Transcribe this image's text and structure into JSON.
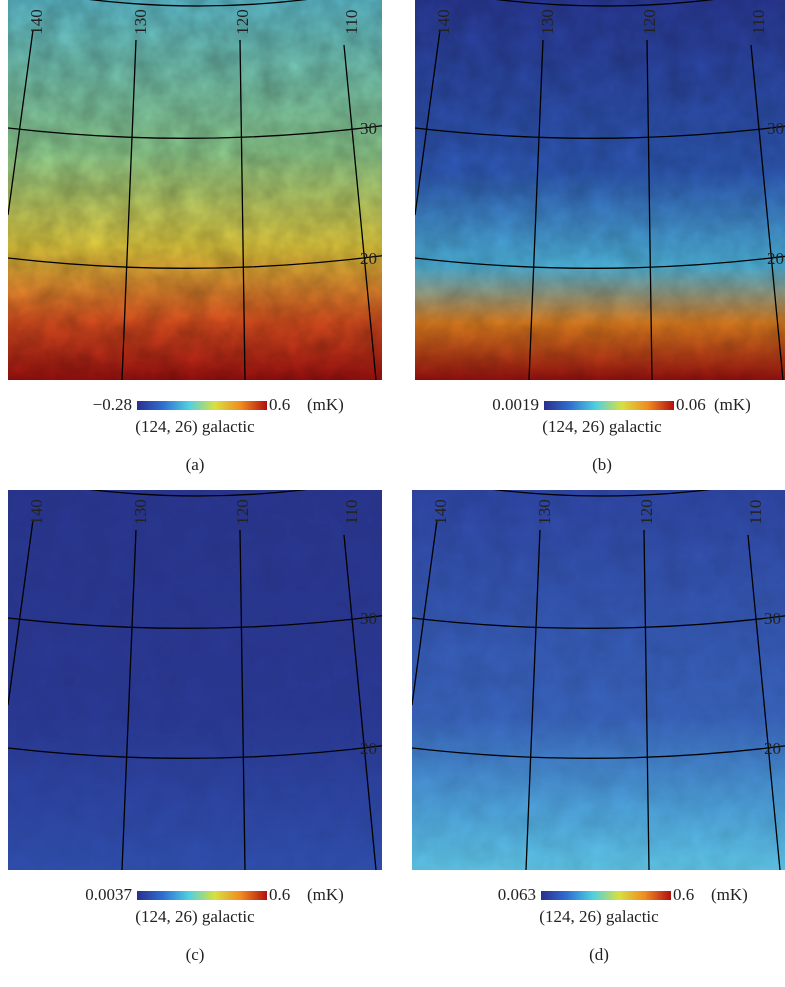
{
  "graticule": {
    "longitudes": [
      "140",
      "130",
      "120",
      "110"
    ],
    "latitudes": [
      "30",
      "20"
    ]
  },
  "panels": [
    {
      "caption": "(a)",
      "min": "−0.28",
      "max": "0.6",
      "unit": "(mK)",
      "center": "(124, 26) galactic"
    },
    {
      "caption": "(b)",
      "min": "0.0019",
      "max": "0.06",
      "unit": "(mK)",
      "center": "(124, 26) galactic"
    },
    {
      "caption": "(c)",
      "min": "0.0037",
      "max": "0.6",
      "unit": "(mK)",
      "center": "(124, 26) galactic"
    },
    {
      "caption": "(d)",
      "min": "0.063",
      "max": "0.6",
      "unit": "(mK)",
      "center": "(124, 26) galactic"
    }
  ]
}
